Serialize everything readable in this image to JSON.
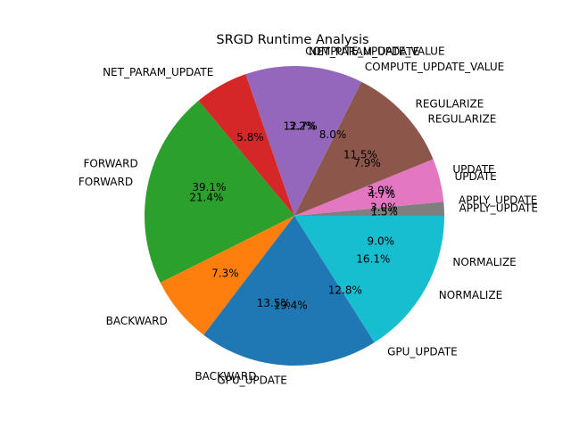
{
  "chart_data": {
    "type": "pie",
    "title": "SRGD Runtime Analysis",
    "start_angle_deg": 0,
    "direction": "counterclockwise",
    "layers": [
      {
        "name": "",
        "slices": [
          {
            "label": "APPLY_UPDATE",
            "value": 1.5,
            "pct_text": "1.5%",
            "color": "#7f7f7f"
          },
          {
            "label": "UPDATE",
            "value": 4.7,
            "pct_text": "4.7%",
            "color": "#e377c2"
          },
          {
            "label": "REGULARIZE",
            "value": 11.5,
            "pct_text": "11.5%",
            "color": "#8c564b"
          },
          {
            "label": "COMPUTE_UPDATE_VALUE",
            "value": 12.7,
            "pct_text": "12.7%",
            "color": "#9467bd"
          },
          {
            "label": "NET_PARAM_UPDATE",
            "value": 5.8,
            "pct_text": "5.8%",
            "color": "#d62728"
          },
          {
            "label": "FORWARD",
            "value": 21.4,
            "pct_text": "21.4%",
            "color": "#2ca02c"
          },
          {
            "label": "BACKWARD",
            "value": 7.3,
            "pct_text": "7.3%",
            "color": "#ff7f0e"
          },
          {
            "label": "GPU_UPDATE",
            "value": 19.4,
            "pct_text": "19.4%",
            "color": "#1f77b4"
          },
          {
            "label": "NORMALIZE",
            "value": 16.1,
            "pct_text": "16.1%",
            "color": "#17becf"
          }
        ]
      },
      {
        "name": "",
        "slices": [
          {
            "label": "APPLY_UPDATE",
            "value": 3.0,
            "pct_text": "3.0%"
          },
          {
            "label": "UPDATE",
            "value": 3.0,
            "pct_text": "3.0%"
          },
          {
            "label": "REGULARIZE",
            "value": 7.9,
            "pct_text": "7.9%"
          },
          {
            "label": "COMPUTE_UPDATE_VALUE",
            "value": 8.0,
            "pct_text": "8.0%"
          },
          {
            "label": "NET_PARAM_UPDATE",
            "value": 3.2,
            "pct_text": "3.2%"
          },
          {
            "label": "FORWARD",
            "value": 39.1,
            "pct_text": "39.1%"
          },
          {
            "label": "BACKWARD",
            "value": 13.5,
            "pct_text": "13.5%"
          },
          {
            "label": "GPU_UPDATE",
            "value": 12.8,
            "pct_text": "12.8%"
          },
          {
            "label": "NORMALIZE",
            "value": 9.0,
            "pct_text": "9.0%"
          }
        ]
      }
    ]
  }
}
